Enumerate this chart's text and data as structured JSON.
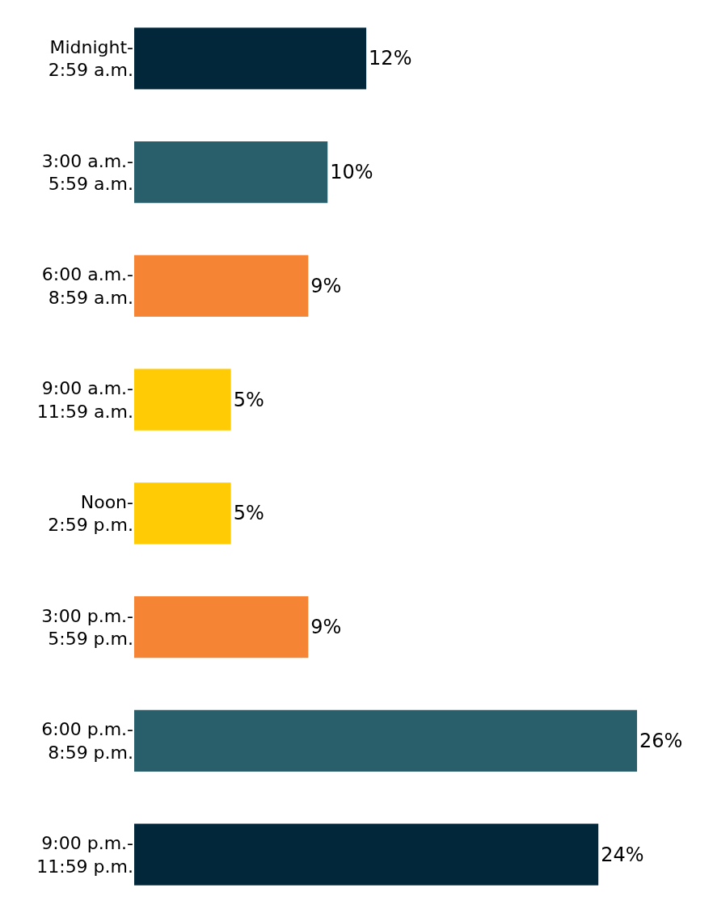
{
  "chart_data": {
    "type": "bar",
    "orientation": "horizontal",
    "categories": [
      "Midnight-\n2:59 a.m.",
      "3:00 a.m.-\n5:59 a.m.",
      "6:00 a.m.-\n8:59 a.m.",
      "9:00 a.m.-\n11:59 a.m.",
      "Noon-\n2:59 p.m.",
      "3:00 p.m.-\n5:59 p.m.",
      "6:00 p.m.-\n8:59 p.m.",
      "9:00 p.m.-\n11:59 p.m."
    ],
    "values": [
      12,
      10,
      9,
      5,
      5,
      9,
      26,
      24
    ],
    "value_labels": [
      "12%",
      "10%",
      "9%",
      "5%",
      "5%",
      "9%",
      "26%",
      "24%"
    ],
    "colors": [
      "#02263a",
      "#285f6b",
      "#f58434",
      "#ffcb05",
      "#ffcb05",
      "#f58434",
      "#285f6b",
      "#02263a"
    ],
    "legend": false
  }
}
